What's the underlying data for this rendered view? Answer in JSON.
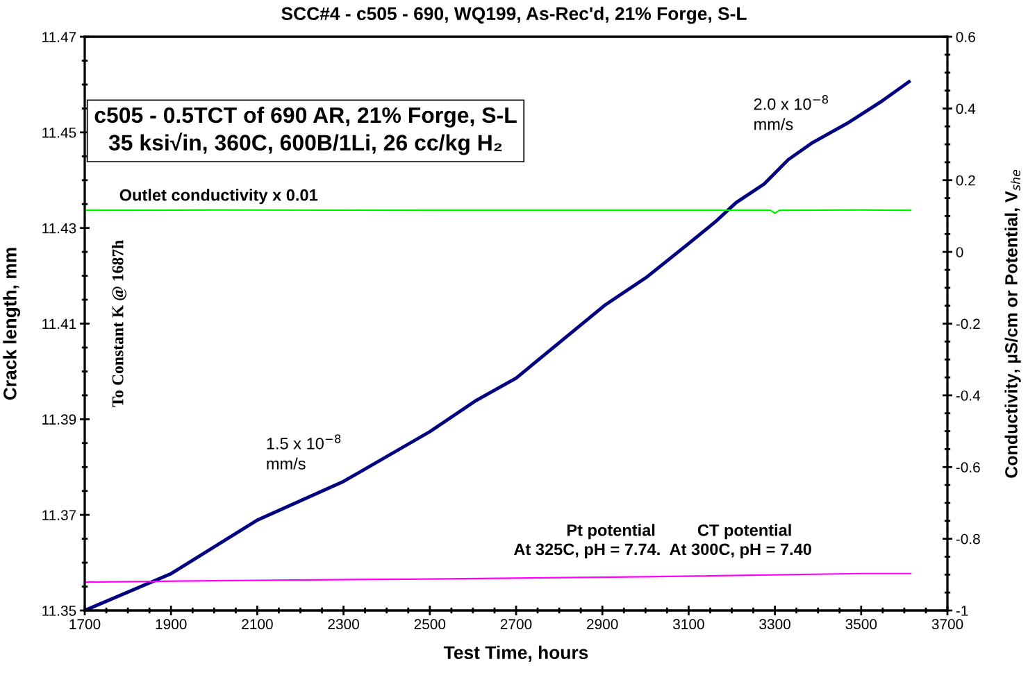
{
  "chart_data": {
    "type": "line",
    "title": "SCC#4 - c505 - 690, WQ199, As-Rec'd, 21% Forge, S-L",
    "xlabel": "Test Time, hours",
    "ylabel": "Crack length, mm",
    "y2label": "Conductivity, µS/cm or Potential, V$_{she}$",
    "xlim": [
      1700,
      3700
    ],
    "xticks": [
      1700,
      1900,
      2100,
      2300,
      2500,
      2700,
      2900,
      3100,
      3300,
      3500,
      3700
    ],
    "ylim": [
      11.35,
      11.47
    ],
    "yticks": [
      11.35,
      11.37,
      11.39,
      11.41,
      11.43,
      11.45,
      11.47
    ],
    "y2lim": [
      -1,
      0.6
    ],
    "y2ticks": [
      -1,
      -0.8,
      -0.6,
      -0.4,
      -0.2,
      0,
      0.2,
      0.4,
      0.6
    ],
    "grid": false,
    "marker": "none",
    "line_style": "solid",
    "series": [
      {
        "color": "#000080",
        "x": [
          1700,
          1900,
          2100,
          2300,
          2500,
          2605,
          2700,
          2808,
          2905,
          3001,
          3098,
          3162,
          3210,
          3275,
          3331,
          3388,
          3468,
          3549,
          3611
        ],
        "values": [
          11.35,
          11.3577,
          11.3689,
          11.377,
          11.3874,
          11.3938,
          11.3986,
          11.4066,
          11.4138,
          11.4196,
          11.4266,
          11.4313,
          11.4353,
          11.4392,
          11.4443,
          11.4479,
          11.4519,
          11.4566,
          11.4606
        ]
      },
      {
        "color": "#00ee00",
        "axis": "y2",
        "x": [
          1700,
          2000,
          2500,
          3000,
          3290,
          3300,
          3310,
          3500,
          3615
        ],
        "values": [
          0.116,
          0.117,
          0.116,
          0.116,
          0.116,
          0.108,
          0.116,
          0.117,
          0.116
        ]
      },
      {
        "color": "#ff00ff",
        "axis": "y2",
        "x": [
          1700,
          2000,
          2500,
          3000,
          3500,
          3615
        ],
        "values": [
          -0.921,
          -0.917,
          -0.912,
          -0.906,
          -0.897,
          -0.897
        ]
      }
    ],
    "annotations": [
      "c505 - 0.5TCT of 690 AR, 21% Forge, S-L\n35 ksi√in, 360C, 600B/1Li, 26 cc/kg H₂",
      "Outlet conductivity x 0.01",
      "1.5 x 10$^{−8}$\nmm/s",
      "2.0 x 10$^{−8}$\nmm/s",
      "Pt potential",
      "CT potential",
      "At 325C, pH = 7.74.  At 300C, pH = 7.40",
      "To Constant K @ 1687h"
    ]
  }
}
